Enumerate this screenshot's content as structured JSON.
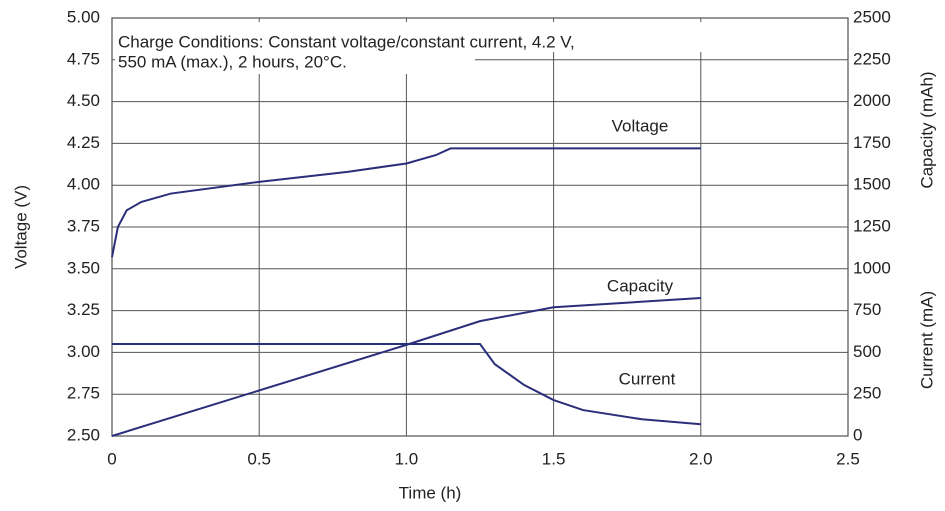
{
  "chart_data": {
    "type": "line",
    "annotation": [
      "Charge Conditions: Constant voltage/constant current, 4.2 V,",
      "550 mA (max.), 2 hours, 20°C."
    ],
    "x_label": "Time (h)",
    "y_label": "Voltage (V)",
    "y2_labels": [
      "Capacity (mAh)",
      "Current (mA)"
    ],
    "xlim": [
      0,
      2.5
    ],
    "xticks": [
      0,
      0.5,
      {
        "value": 1,
        "label": "1.0"
      },
      1.5,
      {
        "value": 2,
        "label": "2.0"
      },
      2.5
    ],
    "ylim": [
      2.5,
      5
    ],
    "yticks": [
      {
        "value": 2.5,
        "label": "2.50"
      },
      2.75,
      {
        "value": 3,
        "label": "3.00"
      },
      3.25,
      {
        "value": 3.5,
        "label": "3.50"
      },
      3.75,
      {
        "value": 4,
        "label": "4.00"
      },
      4.25,
      {
        "value": 4.5,
        "label": "4.50"
      },
      4.75,
      {
        "value": 5,
        "label": "5.00"
      }
    ],
    "y2lim": [
      0,
      2500
    ],
    "y2ticks": [
      0,
      250,
      500,
      750,
      1000,
      1250,
      1500,
      1750,
      2000,
      2250,
      2500
    ],
    "grid": true,
    "series": [
      {
        "name": "Voltage",
        "color": "#2b2f7a",
        "x": [
          0,
          0.02,
          0.05,
          0.1,
          0.2,
          0.5,
          0.8,
          1.0,
          1.1,
          1.15,
          2.0
        ],
        "values": [
          3.57,
          3.75,
          3.85,
          3.9,
          3.95,
          4.02,
          4.08,
          4.13,
          4.18,
          4.22,
          4.22
        ]
      },
      {
        "name": "Capacity",
        "color": "#2b2f7a",
        "axis": "y2",
        "x": [
          0,
          1.0,
          1.25,
          1.5,
          2.0
        ],
        "values": [
          0,
          545,
          687,
          770,
          825
        ]
      },
      {
        "name": "Current",
        "color": "#2b2f7a",
        "axis": "y2",
        "x": [
          0,
          1.25,
          1.3,
          1.4,
          1.5,
          1.6,
          1.8,
          2.0
        ],
        "values": [
          550,
          550,
          430,
          305,
          215,
          155,
          100,
          70
        ]
      }
    ]
  }
}
